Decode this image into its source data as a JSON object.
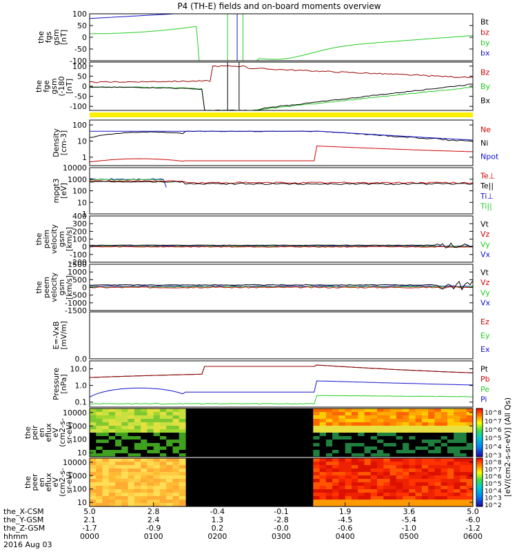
{
  "title": "P4 (TH-E) fields and on-board moments overview",
  "colorbar_unit": "[eV/(cm2-s-sr-eV)] (All Qs)",
  "colors": {
    "black": "#000000",
    "red": "#cc0000",
    "green": "#22cc22",
    "blue": "#1010cc",
    "yellow": "#ffee00",
    "darkred": "#990000"
  },
  "chart_data": [
    {
      "id": "fgs",
      "type": "line",
      "ylabel": [
        "the",
        "fgs",
        "gsm",
        "[nT]"
      ],
      "yticks": [
        "100",
        "50",
        "0",
        "-50",
        "-100"
      ],
      "ytick_values": [
        100,
        50,
        0,
        -50,
        -100
      ],
      "ylim": [
        -100,
        100
      ],
      "legend": [
        {
          "name": "Bt",
          "color": "#000000"
        },
        {
          "name": "bz",
          "color": "#cc0000"
        },
        {
          "name": "by",
          "color": "#22cc22"
        },
        {
          "name": "bx",
          "color": "#1010cc"
        }
      ]
    },
    {
      "id": "fge",
      "type": "line",
      "ylabel": [
        "the",
        "fge",
        "gsm",
        "(-180",
        "[nT]"
      ],
      "yticks": [
        "100",
        "50",
        "0",
        "-50",
        "-100"
      ],
      "ytick_values": [
        100,
        50,
        0,
        -50,
        -100
      ],
      "ylim": [
        -120,
        120
      ],
      "legend": [
        {
          "name": "Bz",
          "color": "#cc0000"
        },
        {
          "name": "By",
          "color": "#22cc22"
        },
        {
          "name": "Bx",
          "color": "#000000"
        }
      ]
    },
    {
      "id": "density",
      "type": "line",
      "log": true,
      "ylabel": [
        "Density",
        "[cm-3]"
      ],
      "yticks": [
        "100",
        "10",
        "1"
      ],
      "ytick_values": [
        100,
        10,
        1
      ],
      "ylim": [
        0.3,
        200
      ],
      "legend": [
        {
          "name": "Ne",
          "color": "#cc0000"
        },
        {
          "name": "Ni",
          "color": "#000000"
        },
        {
          "name": "Npot",
          "color": "#1010cc"
        }
      ]
    },
    {
      "id": "temp",
      "type": "line",
      "log": true,
      "ylabel": [
        "mpgt3",
        "[eV]"
      ],
      "yticks": [
        "10000",
        "1000",
        "100",
        "10",
        "1"
      ],
      "ytick_values": [
        10000,
        1000,
        100,
        10,
        1
      ],
      "ylim": [
        1,
        10000
      ],
      "legend": [
        {
          "name": "Te⊥",
          "color": "#cc0000"
        },
        {
          "name": "Te||",
          "color": "#000000"
        },
        {
          "name": "Ti⊥",
          "color": "#1010cc"
        },
        {
          "name": "Ti||",
          "color": "#22cc22"
        }
      ]
    },
    {
      "id": "peim",
      "type": "line",
      "ylabel": [
        "the",
        "peim",
        "velocity",
        "gsm",
        "[km/s]"
      ],
      "yticks": [
        "400",
        "300",
        "200",
        "100",
        "0",
        "-100",
        "-200"
      ],
      "ytick_values": [
        400,
        300,
        200,
        100,
        0,
        -100,
        -200
      ],
      "ylim": [
        -200,
        400
      ],
      "legend": [
        {
          "name": "Vt",
          "color": "#000000"
        },
        {
          "name": "Vz",
          "color": "#cc0000"
        },
        {
          "name": "Vy",
          "color": "#22cc22"
        },
        {
          "name": "Vx",
          "color": "#1010cc"
        }
      ]
    },
    {
      "id": "peem",
      "type": "line",
      "ylabel": [
        "the",
        "peem",
        "velocity",
        "gsm",
        "[km/s]"
      ],
      "yticks": [
        "1500",
        "1000",
        "500",
        "0",
        "-500",
        "-1000",
        "-1500"
      ],
      "ytick_values": [
        1500,
        1000,
        500,
        0,
        -500,
        -1000,
        -1500
      ],
      "ylim": [
        -1500,
        1500
      ],
      "legend": [
        {
          "name": "Vt",
          "color": "#000000"
        },
        {
          "name": "Vz",
          "color": "#cc0000"
        },
        {
          "name": "Vy",
          "color": "#22cc22"
        },
        {
          "name": "Vx",
          "color": "#1010cc"
        }
      ]
    },
    {
      "id": "efield",
      "type": "line",
      "ylabel": [
        "E=-VxB",
        "[mV/m]"
      ],
      "yticks": [
        "0.0"
      ],
      "ytick_values": [
        0
      ],
      "ylim": [
        0,
        1
      ],
      "legend": [
        {
          "name": "Ez",
          "color": "#cc0000"
        },
        {
          "name": "Ey",
          "color": "#22cc22"
        },
        {
          "name": "Ex",
          "color": "#1010cc"
        }
      ]
    },
    {
      "id": "pressure",
      "type": "line",
      "log": true,
      "ylabel": [
        "Pressure",
        "[nPa]"
      ],
      "yticks": [
        "10.0",
        "1.0",
        "0.1"
      ],
      "ytick_values": [
        10,
        1,
        0.1
      ],
      "ylim": [
        0.05,
        30
      ],
      "legend": [
        {
          "name": "Pt",
          "color": "#000000"
        },
        {
          "name": "Pb",
          "color": "#cc0000"
        },
        {
          "name": "Pe",
          "color": "#22cc22"
        },
        {
          "name": "Pi",
          "color": "#1010cc"
        }
      ]
    },
    {
      "id": "peir",
      "type": "heatmap",
      "log": true,
      "ylabel": [
        "the",
        "peir",
        "en",
        "eflux",
        "eV",
        "(cm2-s-",
        "sr-eV)"
      ],
      "yticks": [
        "10000",
        "1000",
        "100",
        "10"
      ],
      "ytick_values": [
        10000,
        1000,
        100,
        10
      ],
      "ylim": [
        5,
        20000
      ],
      "colorbar_ticks": [
        "10^8",
        "10^7",
        "10^6",
        "10^5",
        "10^4",
        "10^3"
      ]
    },
    {
      "id": "peer",
      "type": "heatmap",
      "log": true,
      "ylabel": [
        "the",
        "peer",
        "en",
        "eflux",
        "eV",
        "(cm2-s-",
        "sr-eV)"
      ],
      "yticks": [
        "10000",
        "1000",
        "100",
        "10"
      ],
      "ytick_values": [
        10000,
        1000,
        100,
        10
      ],
      "ylim": [
        5,
        20000
      ],
      "colorbar_ticks": [
        "10^8",
        "10^7",
        "10^6",
        "10^5",
        "10^4",
        "10^3",
        "10^2"
      ]
    }
  ],
  "xaxis": {
    "row_labels": [
      "the_X-CSM",
      "the_Y-GSM",
      "the_Z-GSM",
      "hhmm",
      "2016 Aug 03"
    ],
    "columns": [
      {
        "x": "5.0",
        "y": "2.1",
        "z": "-1.7",
        "t": "0000"
      },
      {
        "x": "2.8",
        "y": "2.4",
        "z": "-0.9",
        "t": "0100"
      },
      {
        "x": "-0.4",
        "y": "1.3",
        "z": "0.2",
        "t": "0200"
      },
      {
        "x": "-0.1",
        "y": "-2.8",
        "z": "-0.0",
        "t": "0300"
      },
      {
        "x": "1.9",
        "y": "-4.5",
        "z": "-0.6",
        "t": "0400"
      },
      {
        "x": "3.6",
        "y": "-5.4",
        "z": "-1.0",
        "t": "0500"
      },
      {
        "x": "5.0",
        "y": "-6.0",
        "z": "-1.2",
        "t": "0600"
      }
    ]
  }
}
